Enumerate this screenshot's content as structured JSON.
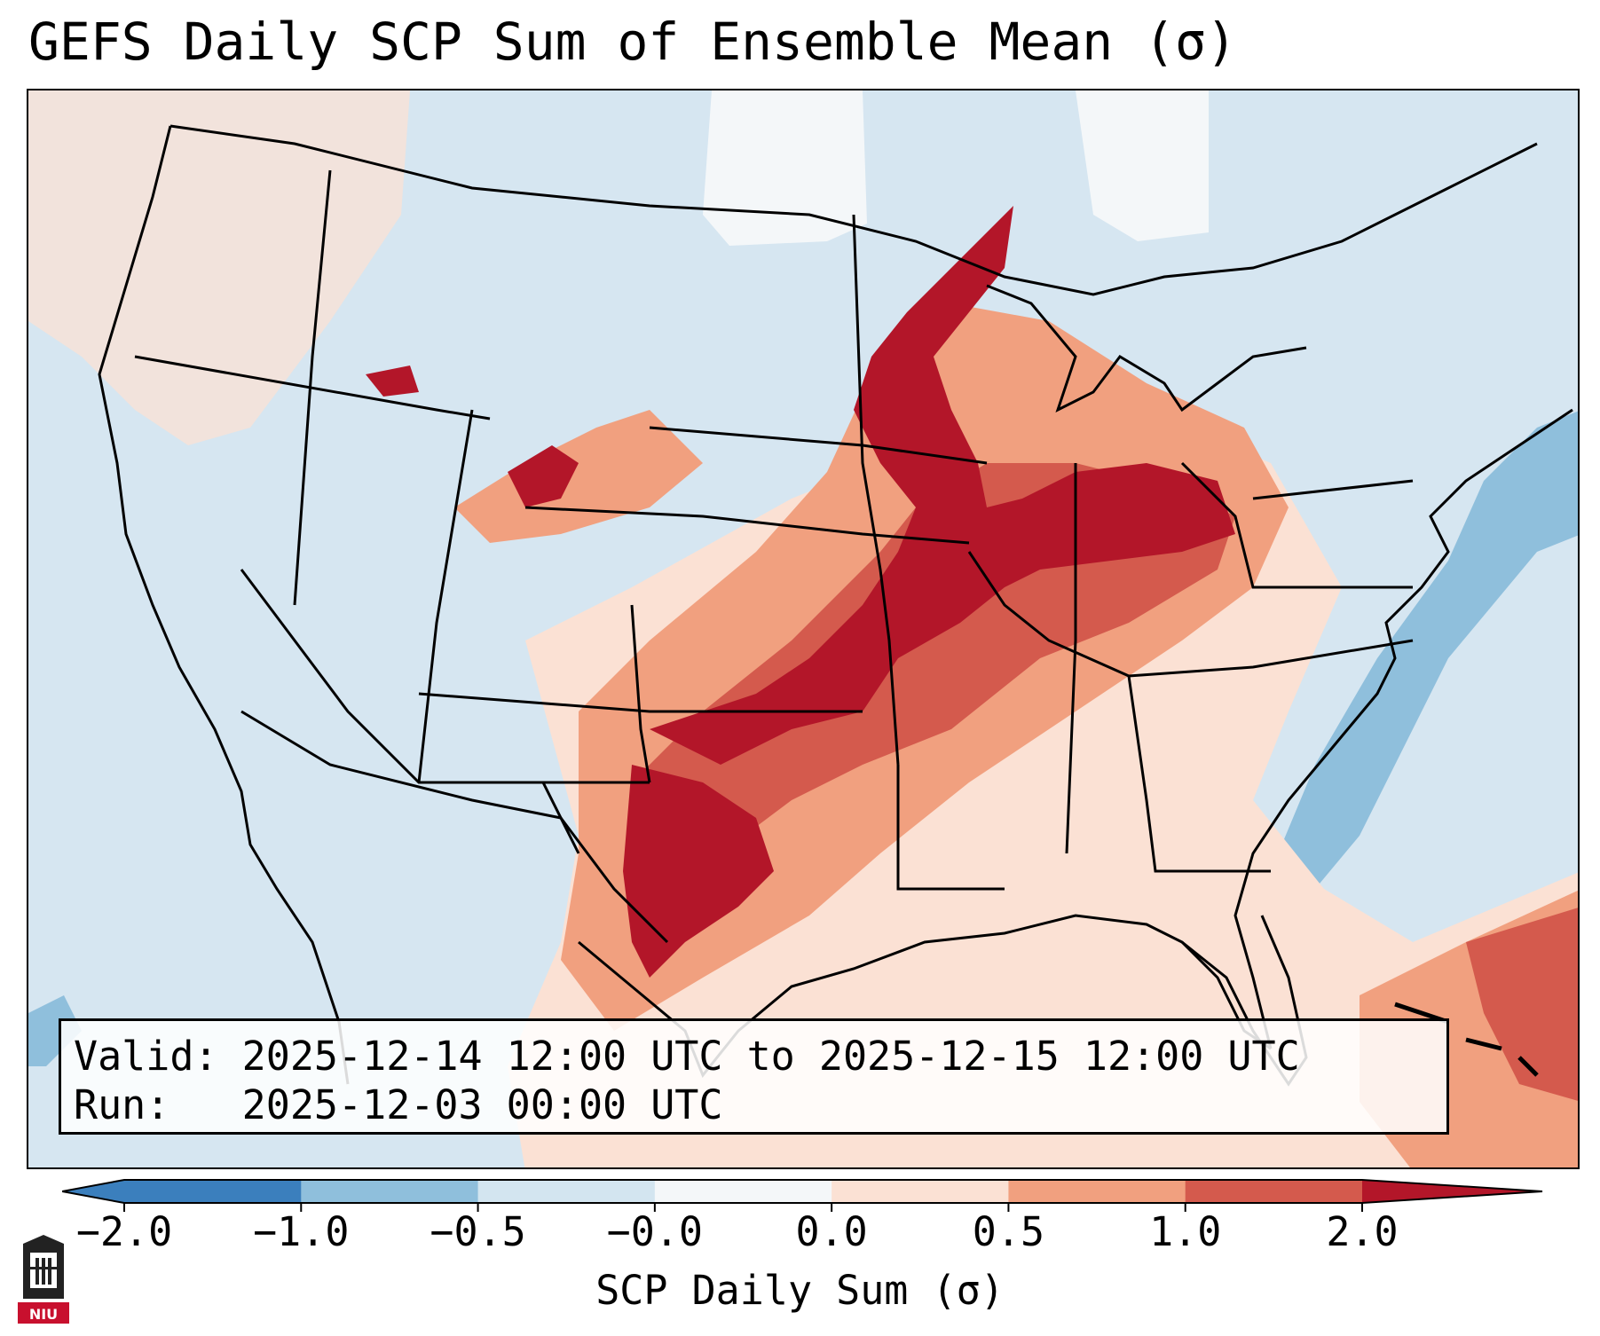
{
  "title": "GEFS Daily SCP Sum of Ensemble Mean (σ)",
  "info": {
    "valid": "Valid: 2025-12-14 12:00 UTC to 2025-12-15 12:00 UTC",
    "run": "Run:   2025-12-03 00:00 UTC"
  },
  "colorbar": {
    "label": "SCP Daily Sum (σ)",
    "ticks": [
      "−2.0",
      "−1.0",
      "−0.5",
      "−0.0",
      "0.0",
      "0.5",
      "1.0",
      "2.0"
    ],
    "colors": [
      "#3b7fbd",
      "#8fbfdc",
      "#d3e5f0",
      "#f4f7f9",
      "#fbe1d4",
      "#f1a07f",
      "#d45a4d",
      "#b31629"
    ],
    "extend": "both"
  },
  "logo": {
    "text": "NIU",
    "icon": "university-tower-icon"
  },
  "map": {
    "projection": "Lambert conformal CONUS",
    "background_color": "#d6e6f1",
    "region_colors": {
      "high": "#b31629",
      "moderate": "#d45a4d",
      "low": "#f1a07f",
      "slight": "#fbe1d4",
      "neutral": "#f4f7f9",
      "below": "#8fbfdc"
    }
  }
}
